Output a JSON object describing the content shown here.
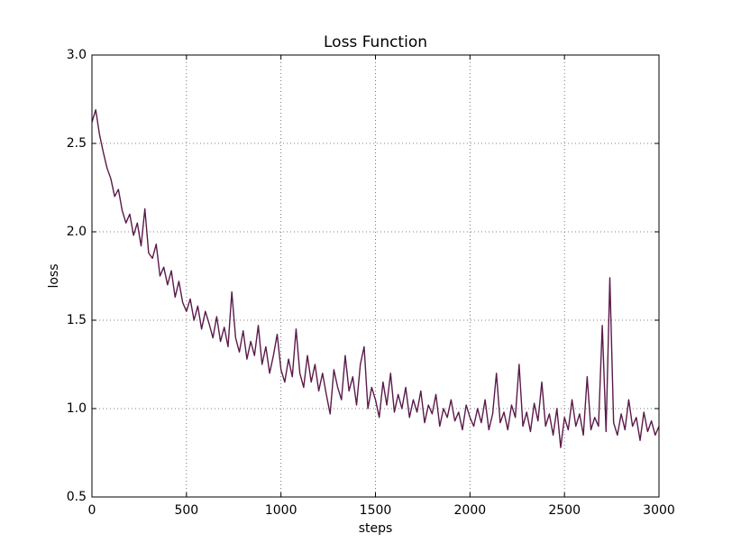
{
  "chart_data": {
    "type": "line",
    "title": "Loss Function",
    "x_label": "steps",
    "y_label": "loss",
    "color": "#5a1a4a",
    "grid": true,
    "xlim": [
      0,
      3000
    ],
    "xticks": [
      0,
      500,
      1000,
      1500,
      2000,
      2500,
      3000
    ],
    "ylim": [
      0.5,
      3.0
    ],
    "yticks": [
      0.5,
      {
        "value": 1.0,
        "label": "1.0"
      },
      1.5,
      {
        "value": 2.0,
        "label": "2.0"
      },
      2.5,
      {
        "value": 3.0,
        "label": "3.0"
      }
    ],
    "x": [
      0,
      20,
      40,
      60,
      80,
      100,
      120,
      140,
      160,
      180,
      200,
      220,
      240,
      260,
      280,
      300,
      320,
      340,
      360,
      380,
      400,
      420,
      440,
      460,
      480,
      500,
      520,
      540,
      560,
      580,
      600,
      620,
      640,
      660,
      680,
      700,
      720,
      740,
      760,
      780,
      800,
      820,
      840,
      860,
      880,
      900,
      920,
      940,
      960,
      980,
      1000,
      1020,
      1040,
      1060,
      1080,
      1100,
      1120,
      1140,
      1160,
      1180,
      1200,
      1220,
      1240,
      1260,
      1280,
      1300,
      1320,
      1340,
      1360,
      1380,
      1400,
      1420,
      1440,
      1460,
      1480,
      1500,
      1520,
      1540,
      1560,
      1580,
      1600,
      1620,
      1640,
      1660,
      1680,
      1700,
      1720,
      1740,
      1760,
      1780,
      1800,
      1820,
      1840,
      1860,
      1880,
      1900,
      1920,
      1940,
      1960,
      1980,
      2000,
      2020,
      2040,
      2060,
      2080,
      2100,
      2120,
      2140,
      2160,
      2180,
      2200,
      2220,
      2240,
      2260,
      2280,
      2300,
      2320,
      2340,
      2360,
      2380,
      2400,
      2420,
      2440,
      2460,
      2480,
      2500,
      2520,
      2540,
      2560,
      2580,
      2600,
      2620,
      2640,
      2660,
      2680,
      2700,
      2720,
      2740,
      2760,
      2780,
      2800,
      2820,
      2840,
      2860,
      2880,
      2900,
      2920,
      2940,
      2960,
      2980,
      3000
    ],
    "values": [
      2.62,
      2.69,
      2.55,
      2.45,
      2.36,
      2.3,
      2.2,
      2.24,
      2.12,
      2.05,
      2.1,
      1.98,
      2.05,
      1.92,
      2.13,
      1.88,
      1.85,
      1.93,
      1.75,
      1.8,
      1.7,
      1.78,
      1.63,
      1.72,
      1.6,
      1.55,
      1.62,
      1.5,
      1.58,
      1.45,
      1.55,
      1.48,
      1.4,
      1.52,
      1.38,
      1.46,
      1.35,
      1.66,
      1.4,
      1.32,
      1.44,
      1.28,
      1.38,
      1.3,
      1.47,
      1.25,
      1.35,
      1.2,
      1.3,
      1.42,
      1.22,
      1.15,
      1.28,
      1.18,
      1.45,
      1.2,
      1.12,
      1.3,
      1.15,
      1.25,
      1.1,
      1.2,
      1.08,
      0.97,
      1.22,
      1.12,
      1.05,
      1.3,
      1.1,
      1.18,
      1.02,
      1.25,
      1.35,
      1.0,
      1.12,
      1.05,
      0.95,
      1.15,
      1.02,
      1.2,
      0.98,
      1.08,
      1.0,
      1.12,
      0.95,
      1.05,
      0.98,
      1.1,
      0.92,
      1.02,
      0.97,
      1.08,
      0.9,
      1.0,
      0.95,
      1.05,
      0.93,
      0.98,
      0.88,
      1.02,
      0.95,
      0.9,
      1.0,
      0.92,
      1.05,
      0.88,
      0.97,
      1.2,
      0.92,
      0.98,
      0.88,
      1.02,
      0.95,
      1.25,
      0.9,
      0.98,
      0.87,
      1.03,
      0.93,
      1.15,
      0.9,
      0.97,
      0.85,
      1.0,
      0.78,
      0.95,
      0.88,
      1.05,
      0.9,
      0.97,
      0.85,
      1.18,
      0.88,
      0.95,
      0.9,
      1.47,
      0.87,
      1.74,
      0.92,
      0.85,
      0.97,
      0.88,
      1.05,
      0.9,
      0.95,
      0.82,
      0.98,
      0.87,
      0.93,
      0.85,
      0.9
    ]
  }
}
